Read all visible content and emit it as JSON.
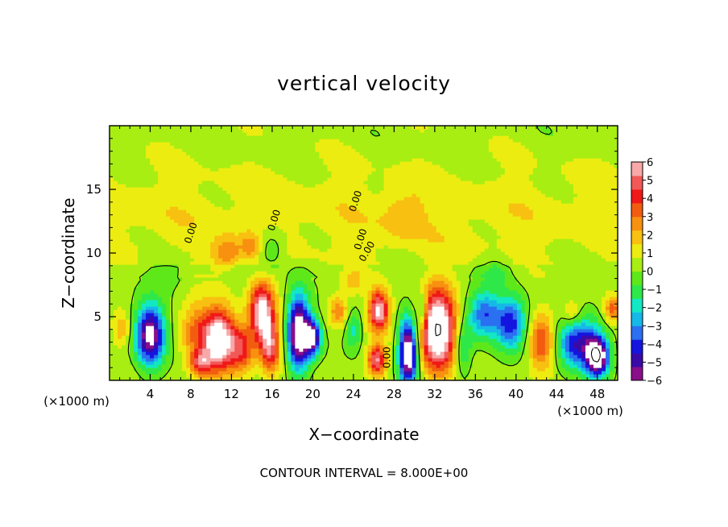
{
  "chart_data": {
    "type": "heatmap",
    "title": "vertical velocity",
    "xlabel": "X−coordinate",
    "ylabel": "Z−coordinate",
    "x_unit": "(×1000 m)",
    "x_unit_right": "(×1000 m)",
    "xlim": [
      0,
      50
    ],
    "ylim": [
      0,
      20
    ],
    "x_ticks": [
      4,
      8,
      12,
      16,
      20,
      24,
      28,
      32,
      36,
      40,
      44,
      48
    ],
    "y_ticks": [
      5,
      10,
      15
    ],
    "contour_interval_text": "CONTOUR INTERVAL = 8.000E+00",
    "contour_labels": [
      "0.00",
      "0.00",
      "0.00",
      "0.00",
      "0.00",
      "0.00"
    ],
    "colorbar": {
      "min": -6,
      "max": 6,
      "ticks": [
        "6",
        "5",
        "4",
        "3",
        "2",
        "1",
        "0",
        "−1",
        "−2",
        "−3",
        "−4",
        "−5",
        "−6"
      ],
      "colors": [
        "#8a0e8a",
        "#3a0aa8",
        "#1515e0",
        "#2a70f0",
        "#16b8e8",
        "#12e8c4",
        "#2ee84a",
        "#5ee81a",
        "#a8ee12",
        "#ecec10",
        "#f8c010",
        "#f89010",
        "#f25c10",
        "#f01818",
        "#f25858",
        "#f8a8a8"
      ]
    },
    "cells": [
      {
        "x": 4.0,
        "z": 3.6,
        "w": -7,
        "rx": 1.4,
        "rz": 2.3
      },
      {
        "x": 10.8,
        "z": 3.2,
        "w": 7,
        "rx": 1.5,
        "rz": 2.5
      },
      {
        "x": 8.5,
        "z": 3.8,
        "w": 2.5,
        "rx": 1.5,
        "rz": 2.5
      },
      {
        "x": 13.0,
        "z": 2.5,
        "w": 3.5,
        "rx": 1.2,
        "rz": 2.0
      },
      {
        "x": 15.0,
        "z": 5.4,
        "w": 6.5,
        "rx": 1.2,
        "rz": 2.3
      },
      {
        "x": 15.8,
        "z": 2.6,
        "w": 4.5,
        "rx": 1.0,
        "rz": 2.0
      },
      {
        "x": 18.6,
        "z": 3.8,
        "w": -8,
        "rx": 1.1,
        "rz": 2.9
      },
      {
        "x": 20.0,
        "z": 3.4,
        "w": -6,
        "rx": 0.8,
        "rz": 1.4
      },
      {
        "x": 22.5,
        "z": 5.5,
        "w": 2.5,
        "rx": 1.0,
        "rz": 1.2
      },
      {
        "x": 26.5,
        "z": 5.5,
        "w": 6,
        "rx": 1.0,
        "rz": 1.6
      },
      {
        "x": 26.3,
        "z": 1.6,
        "w": 5,
        "rx": 0.9,
        "rz": 1.2
      },
      {
        "x": 29.4,
        "z": 2.2,
        "w": -8,
        "rx": 0.9,
        "rz": 2.6
      },
      {
        "x": 32.3,
        "z": 4.0,
        "w": 8,
        "rx": 1.7,
        "rz": 3.2
      },
      {
        "x": 36.8,
        "z": 5.2,
        "w": -4,
        "rx": 1.6,
        "rz": 1.8
      },
      {
        "x": 39.5,
        "z": 4.5,
        "w": -4.5,
        "rx": 1.5,
        "rz": 2.0
      },
      {
        "x": 42.5,
        "z": 3.0,
        "w": 3.5,
        "rx": 1.3,
        "rz": 2.2
      },
      {
        "x": 46.0,
        "z": 3.0,
        "w": -5,
        "rx": 2.0,
        "rz": 2.0
      },
      {
        "x": 48.0,
        "z": 1.9,
        "w": -8,
        "rx": 1.1,
        "rz": 1.5
      },
      {
        "x": 45.5,
        "z": 5.2,
        "w": 2.0,
        "rx": 1.0,
        "rz": 1.2
      },
      {
        "x": 11.5,
        "z": 10.0,
        "w": 2.5,
        "rx": 1.5,
        "rz": 1.2
      },
      {
        "x": 14.0,
        "z": 10.5,
        "w": 2.0,
        "rx": 1.0,
        "rz": 1.0
      },
      {
        "x": 15.8,
        "z": 10.4,
        "w": -1.8,
        "rx": 1.5,
        "rz": 1.5
      },
      {
        "x": 29.0,
        "z": 13.0,
        "w": 1.2,
        "rx": 2.0,
        "rz": 2.0
      },
      {
        "x": 6.0,
        "z": 8.5,
        "w": -0.8,
        "rx": 2.0,
        "rz": 1.5
      },
      {
        "x": 24.0,
        "z": 7.8,
        "w": 1.5,
        "rx": 1.0,
        "rz": 1.0
      },
      {
        "x": 38.0,
        "z": 8.5,
        "w": -1.2,
        "rx": 1.5,
        "rz": 1.2
      },
      {
        "x": 9.0,
        "z": 1.4,
        "w": 3.5,
        "rx": 1.0,
        "rz": 1.0
      },
      {
        "x": 30.8,
        "z": 5.6,
        "w": -2.5,
        "rx": 0.5,
        "rz": 1.5
      },
      {
        "x": 1.2,
        "z": 4.0,
        "w": 1.8,
        "rx": 0.8,
        "rz": 1.2
      },
      {
        "x": 24.0,
        "z": 4.0,
        "w": -2.2,
        "rx": 0.8,
        "rz": 1.5
      },
      {
        "x": 34.8,
        "z": 2.5,
        "w": -2.5,
        "rx": 0.8,
        "rz": 2.0
      },
      {
        "x": 49.5,
        "z": 5.6,
        "w": 3.0,
        "rx": 0.8,
        "rz": 1.0
      }
    ]
  }
}
